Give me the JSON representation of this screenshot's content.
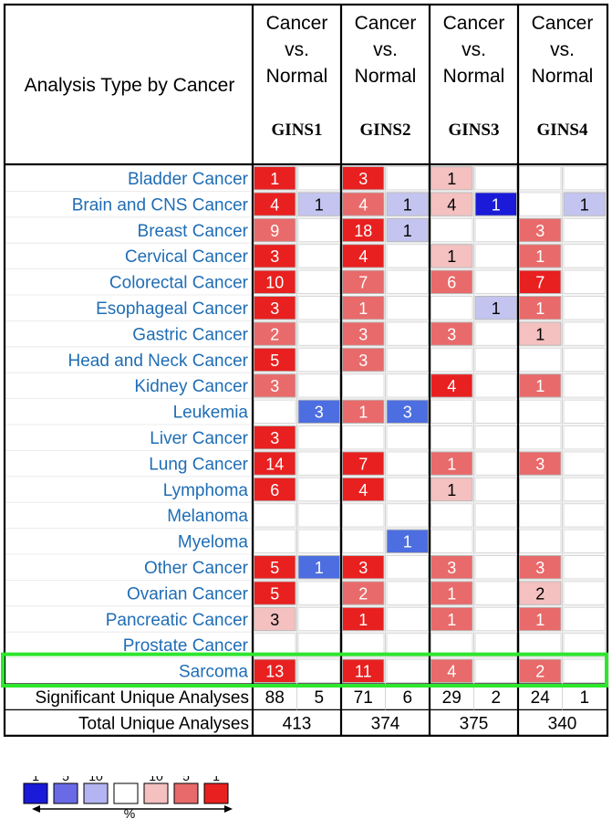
{
  "chart_data": {
    "type": "heatmap",
    "title": "",
    "row_header": "Analysis Type by Cancer",
    "column_group_label_lines": [
      "Cancer",
      "vs.",
      "Normal"
    ],
    "genes": [
      "GINS1",
      "GINS2",
      "GINS3",
      "GINS4"
    ],
    "rows": [
      {
        "name": "Bladder Cancer",
        "values": [
          [
            1,
            null
          ],
          [
            3,
            null
          ],
          [
            1,
            null
          ],
          [
            null,
            null
          ]
        ],
        "shades": [
          [
            "r3",
            null
          ],
          [
            "r3",
            null
          ],
          [
            "r1",
            null
          ],
          [
            null,
            null
          ]
        ]
      },
      {
        "name": "Brain and CNS Cancer",
        "values": [
          [
            4,
            1
          ],
          [
            4,
            1
          ],
          [
            4,
            1
          ],
          [
            null,
            1
          ]
        ],
        "shades": [
          [
            "r3",
            "b1"
          ],
          [
            "r2",
            "b1"
          ],
          [
            "r1",
            "b3"
          ],
          [
            null,
            "b1"
          ]
        ]
      },
      {
        "name": "Breast Cancer",
        "values": [
          [
            9,
            null
          ],
          [
            18,
            1
          ],
          [
            null,
            null
          ],
          [
            3,
            null
          ]
        ],
        "shades": [
          [
            "r2",
            null
          ],
          [
            "r3",
            "b1"
          ],
          [
            null,
            null
          ],
          [
            "r2",
            null
          ]
        ]
      },
      {
        "name": "Cervical Cancer",
        "values": [
          [
            3,
            null
          ],
          [
            4,
            null
          ],
          [
            1,
            null
          ],
          [
            1,
            null
          ]
        ],
        "shades": [
          [
            "r3",
            null
          ],
          [
            "r3",
            null
          ],
          [
            "r1",
            null
          ],
          [
            "r2",
            null
          ]
        ]
      },
      {
        "name": "Colorectal Cancer",
        "values": [
          [
            10,
            null
          ],
          [
            7,
            null
          ],
          [
            6,
            null
          ],
          [
            7,
            null
          ]
        ],
        "shades": [
          [
            "r3",
            null
          ],
          [
            "r2",
            null
          ],
          [
            "r2",
            null
          ],
          [
            "r3",
            null
          ]
        ]
      },
      {
        "name": "Esophageal Cancer",
        "values": [
          [
            3,
            null
          ],
          [
            1,
            null
          ],
          [
            null,
            1
          ],
          [
            1,
            null
          ]
        ],
        "shades": [
          [
            "r3",
            null
          ],
          [
            "r2",
            null
          ],
          [
            null,
            "b1"
          ],
          [
            "r2",
            null
          ]
        ]
      },
      {
        "name": "Gastric Cancer",
        "values": [
          [
            2,
            null
          ],
          [
            3,
            null
          ],
          [
            3,
            null
          ],
          [
            1,
            null
          ]
        ],
        "shades": [
          [
            "r2",
            null
          ],
          [
            "r2",
            null
          ],
          [
            "r2",
            null
          ],
          [
            "r1",
            null
          ]
        ]
      },
      {
        "name": "Head and Neck Cancer",
        "values": [
          [
            5,
            null
          ],
          [
            3,
            null
          ],
          [
            null,
            null
          ],
          [
            null,
            null
          ]
        ],
        "shades": [
          [
            "r3",
            null
          ],
          [
            "r2",
            null
          ],
          [
            null,
            null
          ],
          [
            null,
            null
          ]
        ]
      },
      {
        "name": "Kidney Cancer",
        "values": [
          [
            3,
            null
          ],
          [
            null,
            null
          ],
          [
            4,
            null
          ],
          [
            1,
            null
          ]
        ],
        "shades": [
          [
            "r2",
            null
          ],
          [
            null,
            null
          ],
          [
            "r3",
            null
          ],
          [
            "r2",
            null
          ]
        ]
      },
      {
        "name": "Leukemia",
        "values": [
          [
            null,
            3
          ],
          [
            1,
            3
          ],
          [
            null,
            null
          ],
          [
            null,
            null
          ]
        ],
        "shades": [
          [
            null,
            "b2"
          ],
          [
            "r2",
            "b2"
          ],
          [
            null,
            null
          ],
          [
            null,
            null
          ]
        ]
      },
      {
        "name": "Liver Cancer",
        "values": [
          [
            3,
            null
          ],
          [
            null,
            null
          ],
          [
            null,
            null
          ],
          [
            null,
            null
          ]
        ],
        "shades": [
          [
            "r3",
            null
          ],
          [
            null,
            null
          ],
          [
            null,
            null
          ],
          [
            null,
            null
          ]
        ]
      },
      {
        "name": "Lung Cancer",
        "values": [
          [
            14,
            null
          ],
          [
            7,
            null
          ],
          [
            1,
            null
          ],
          [
            3,
            null
          ]
        ],
        "shades": [
          [
            "r3",
            null
          ],
          [
            "r3",
            null
          ],
          [
            "r2",
            null
          ],
          [
            "r2",
            null
          ]
        ]
      },
      {
        "name": "Lymphoma",
        "values": [
          [
            6,
            null
          ],
          [
            4,
            null
          ],
          [
            1,
            null
          ],
          [
            null,
            null
          ]
        ],
        "shades": [
          [
            "r3",
            null
          ],
          [
            "r3",
            null
          ],
          [
            "r1",
            null
          ],
          [
            null,
            null
          ]
        ]
      },
      {
        "name": "Melanoma",
        "values": [
          [
            null,
            null
          ],
          [
            null,
            null
          ],
          [
            null,
            null
          ],
          [
            null,
            null
          ]
        ],
        "shades": [
          [
            null,
            null
          ],
          [
            null,
            null
          ],
          [
            null,
            null
          ],
          [
            null,
            null
          ]
        ]
      },
      {
        "name": "Myeloma",
        "values": [
          [
            null,
            null
          ],
          [
            null,
            1
          ],
          [
            null,
            null
          ],
          [
            null,
            null
          ]
        ],
        "shades": [
          [
            null,
            null
          ],
          [
            null,
            "b2"
          ],
          [
            null,
            null
          ],
          [
            null,
            null
          ]
        ]
      },
      {
        "name": "Other Cancer",
        "values": [
          [
            5,
            1
          ],
          [
            3,
            null
          ],
          [
            3,
            null
          ],
          [
            3,
            null
          ]
        ],
        "shades": [
          [
            "r3",
            "b2"
          ],
          [
            "r3",
            null
          ],
          [
            "r2",
            null
          ],
          [
            "r2",
            null
          ]
        ]
      },
      {
        "name": "Ovarian Cancer",
        "values": [
          [
            5,
            null
          ],
          [
            2,
            null
          ],
          [
            1,
            null
          ],
          [
            2,
            null
          ]
        ],
        "shades": [
          [
            "r3",
            null
          ],
          [
            "r2",
            null
          ],
          [
            "r2",
            null
          ],
          [
            "r1",
            null
          ]
        ]
      },
      {
        "name": "Pancreatic Cancer",
        "values": [
          [
            3,
            null
          ],
          [
            1,
            null
          ],
          [
            1,
            null
          ],
          [
            1,
            null
          ]
        ],
        "shades": [
          [
            "r1",
            null
          ],
          [
            "r3",
            null
          ],
          [
            "r2",
            null
          ],
          [
            "r2",
            null
          ]
        ]
      },
      {
        "name": "Prostate Cancer",
        "values": [
          [
            null,
            null
          ],
          [
            null,
            null
          ],
          [
            null,
            null
          ],
          [
            null,
            null
          ]
        ],
        "shades": [
          [
            null,
            null
          ],
          [
            null,
            null
          ],
          [
            null,
            null
          ],
          [
            null,
            null
          ]
        ]
      },
      {
        "name": "Sarcoma",
        "values": [
          [
            13,
            null
          ],
          [
            11,
            null
          ],
          [
            4,
            null
          ],
          [
            2,
            null
          ]
        ],
        "shades": [
          [
            "r3",
            null
          ],
          [
            "r3",
            null
          ],
          [
            "r2",
            null
          ],
          [
            "r2",
            null
          ]
        ],
        "highlighted": true
      }
    ],
    "significant_label": "Significant Unique Analyses",
    "significant": [
      [
        88,
        5
      ],
      [
        71,
        6
      ],
      [
        29,
        2
      ],
      [
        24,
        1
      ]
    ],
    "total_label": "Total Unique Analyses",
    "total": [
      413,
      374,
      375,
      340
    ],
    "highlight_color": "#2ee62e",
    "legend": {
      "labels": [
        "1",
        "5",
        "10",
        "",
        "10",
        "5",
        "1"
      ],
      "colors": [
        "#1a1ad8",
        "#6a6ae6",
        "#b4b4f2",
        "#ffffff",
        "#f4c0c0",
        "#e86a6a",
        "#e82020"
      ],
      "axis_label": "%"
    },
    "shade_colors": {
      "r3": "#e82020",
      "r2": "#e86a6a",
      "r1": "#f4c0c0",
      "b3": "#1a1ad8",
      "b2": "#4d6ee0",
      "b1": "#c4c4f0"
    }
  }
}
